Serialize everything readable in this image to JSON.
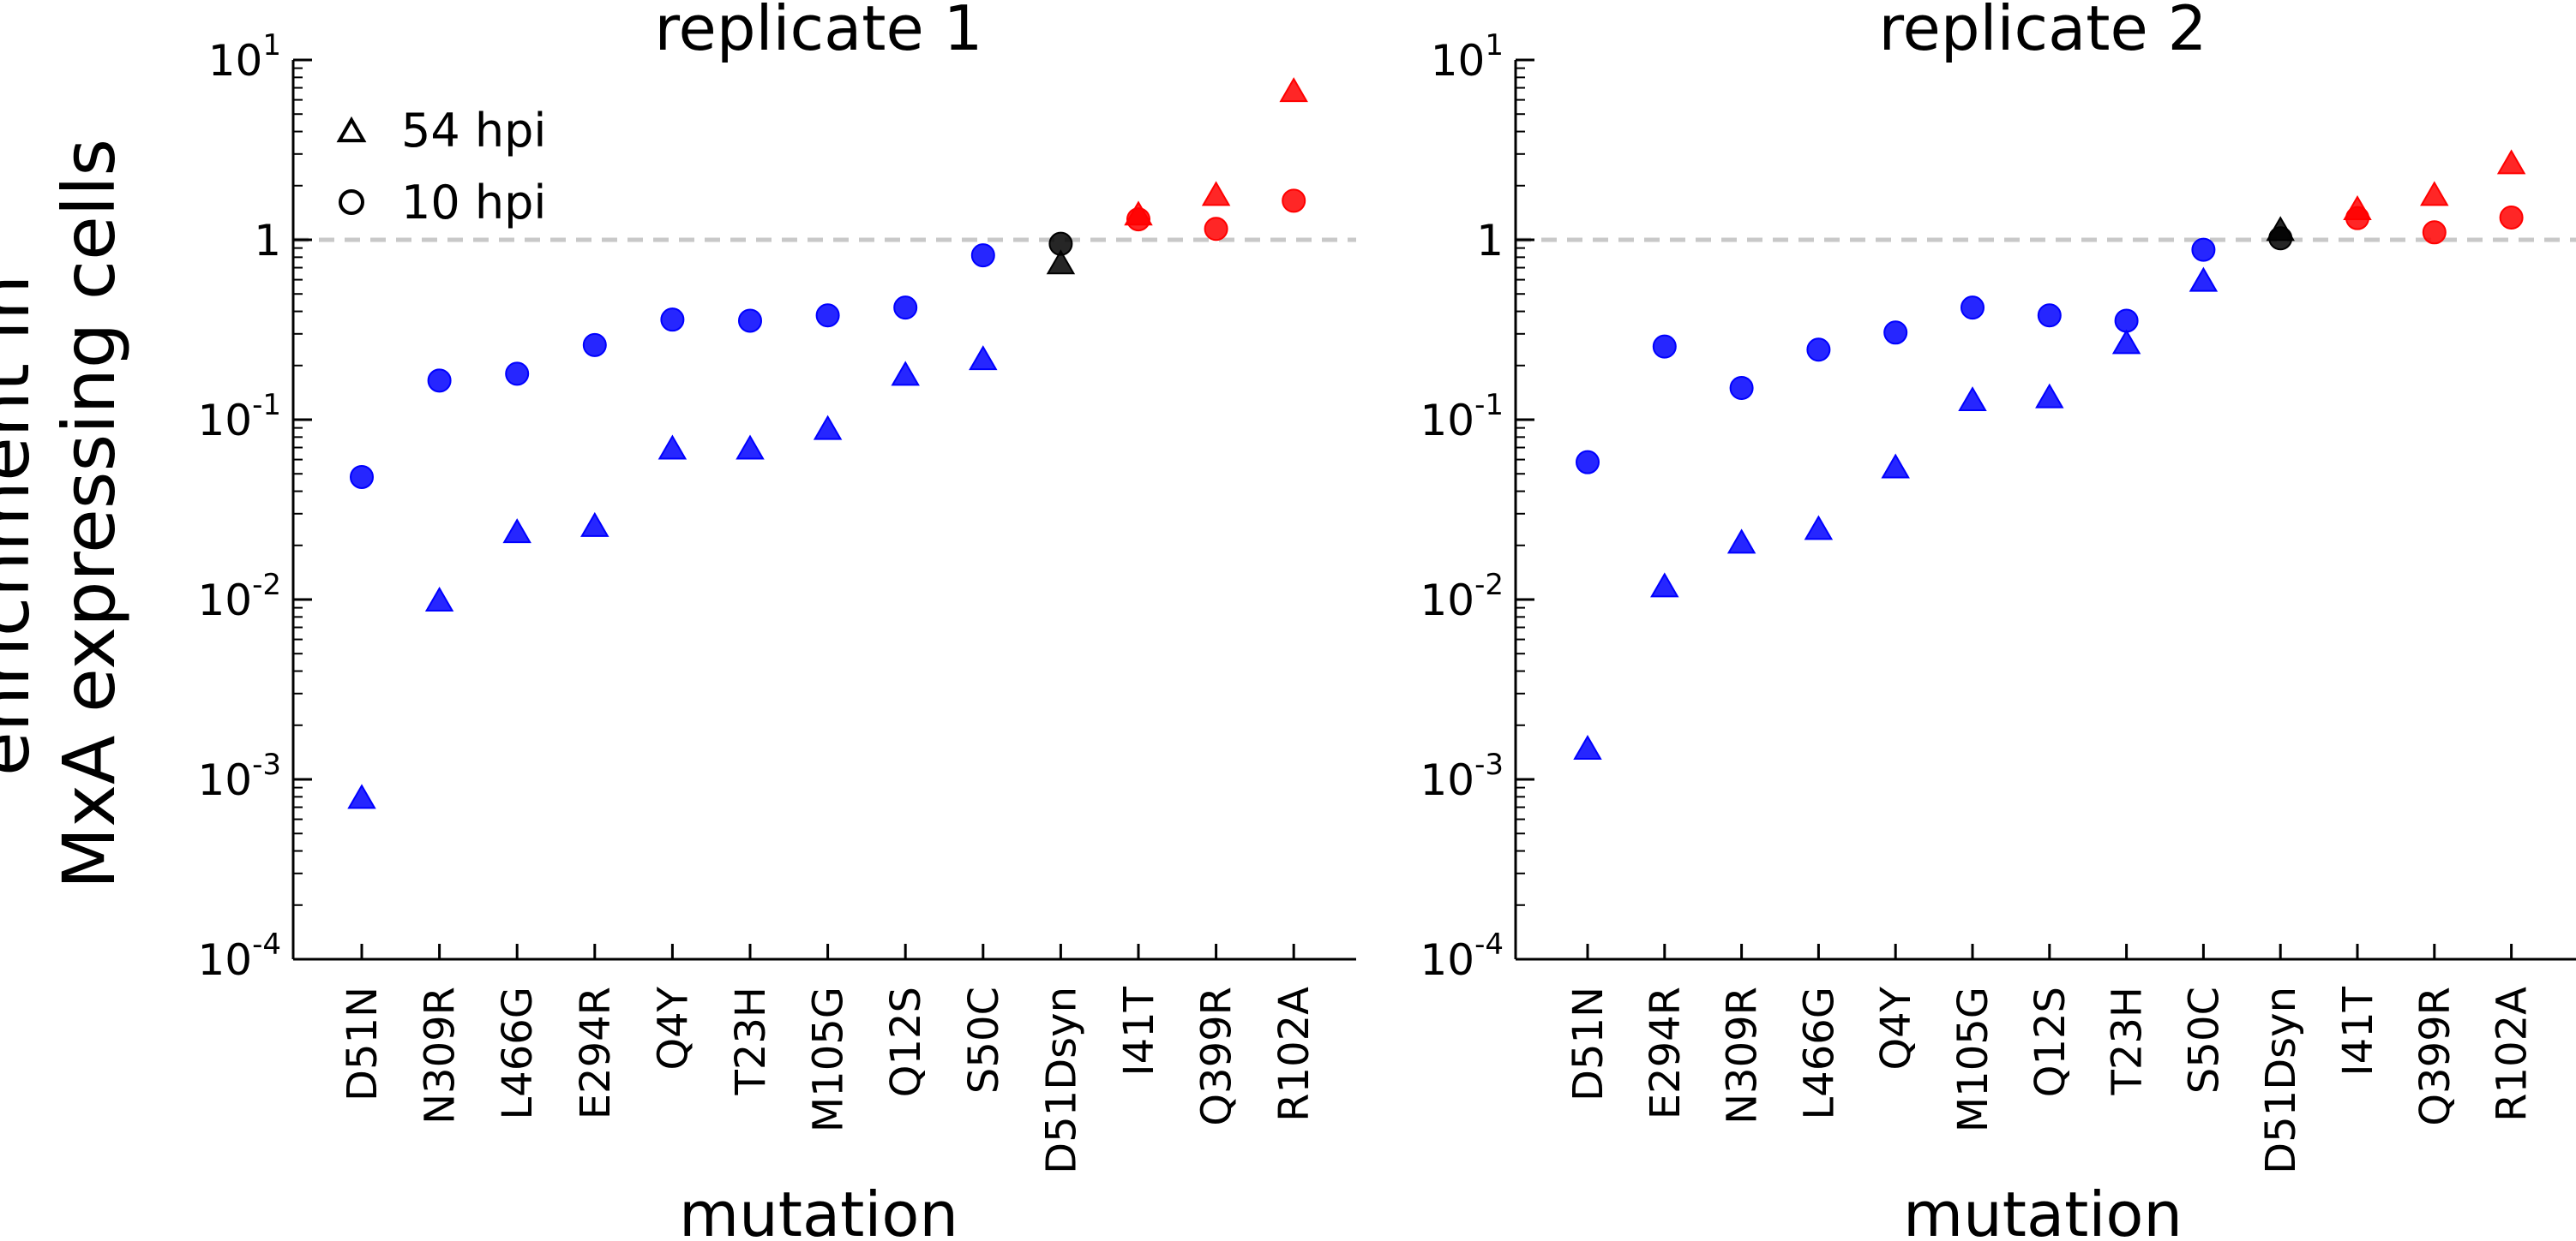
{
  "figure": {
    "ylabel_line1": "enrichment in",
    "ylabel_line2": "MxA expressing cells",
    "legend": [
      {
        "marker": "triangle",
        "label": "54 hpi"
      },
      {
        "marker": "circle",
        "label": "10 hpi"
      }
    ],
    "reference_line": 1,
    "colors": {
      "decreased": "#0000ff",
      "synonymous": "#000000",
      "increased": "#ff0000",
      "reference_line": "#c8c8c8"
    }
  },
  "chart_data": [
    {
      "type": "scatter",
      "title": "replicate 1",
      "xlabel": "mutation",
      "ylabel": "enrichment in MxA expressing cells",
      "yscale": "log",
      "ylim": [
        0.0001,
        10
      ],
      "yticks": [
        {
          "base": "10",
          "exp": "1"
        },
        {
          "base": "1",
          "exp": ""
        },
        {
          "base": "10",
          "exp": "-1"
        },
        {
          "base": "10",
          "exp": "-2"
        },
        {
          "base": "10",
          "exp": "-3"
        },
        {
          "base": "10",
          "exp": "-4"
        }
      ],
      "categories": [
        "D51N",
        "N309R",
        "L466G",
        "E294R",
        "Q4Y",
        "T23H",
        "M105G",
        "Q12S",
        "S50C",
        "D51Dsyn",
        "I41T",
        "Q399R",
        "R102A"
      ],
      "category_colors": [
        "decreased",
        "decreased",
        "decreased",
        "decreased",
        "decreased",
        "decreased",
        "decreased",
        "decreased",
        "decreased",
        "synonymous",
        "increased",
        "increased",
        "increased"
      ],
      "series": [
        {
          "name": "54 hpi",
          "marker": "triangle",
          "values": [
            0.0008,
            0.01,
            0.024,
            0.026,
            0.07,
            0.07,
            0.09,
            0.18,
            0.22,
            0.75,
            1.4,
            1.8,
            6.8
          ]
        },
        {
          "name": "10 hpi",
          "marker": "circle",
          "values": [
            0.048,
            0.165,
            0.18,
            0.26,
            0.36,
            0.355,
            0.38,
            0.42,
            0.82,
            0.95,
            1.3,
            1.15,
            1.65
          ]
        }
      ]
    },
    {
      "type": "scatter",
      "title": "replicate 2",
      "xlabel": "mutation",
      "ylabel": "",
      "yscale": "log",
      "ylim": [
        0.0001,
        10
      ],
      "yticks": [
        {
          "base": "10",
          "exp": "1"
        },
        {
          "base": "1",
          "exp": ""
        },
        {
          "base": "10",
          "exp": "-1"
        },
        {
          "base": "10",
          "exp": "-2"
        },
        {
          "base": "10",
          "exp": "-3"
        },
        {
          "base": "10",
          "exp": "-4"
        }
      ],
      "categories": [
        "D51N",
        "E294R",
        "N309R",
        "L466G",
        "Q4Y",
        "M105G",
        "Q12S",
        "T23H",
        "S50C",
        "D51Dsyn",
        "I41T",
        "Q399R",
        "R102A"
      ],
      "category_colors": [
        "decreased",
        "decreased",
        "decreased",
        "decreased",
        "decreased",
        "decreased",
        "decreased",
        "decreased",
        "decreased",
        "synonymous",
        "increased",
        "increased",
        "increased"
      ],
      "series": [
        {
          "name": "54 hpi",
          "marker": "triangle",
          "values": [
            0.0015,
            0.012,
            0.021,
            0.025,
            0.055,
            0.13,
            0.135,
            0.27,
            0.6,
            1.15,
            1.5,
            1.8,
            2.7
          ]
        },
        {
          "name": "10 hpi",
          "marker": "circle",
          "values": [
            0.058,
            0.255,
            0.15,
            0.245,
            0.305,
            0.42,
            0.38,
            0.355,
            0.88,
            1.02,
            1.32,
            1.1,
            1.33
          ]
        }
      ]
    }
  ]
}
